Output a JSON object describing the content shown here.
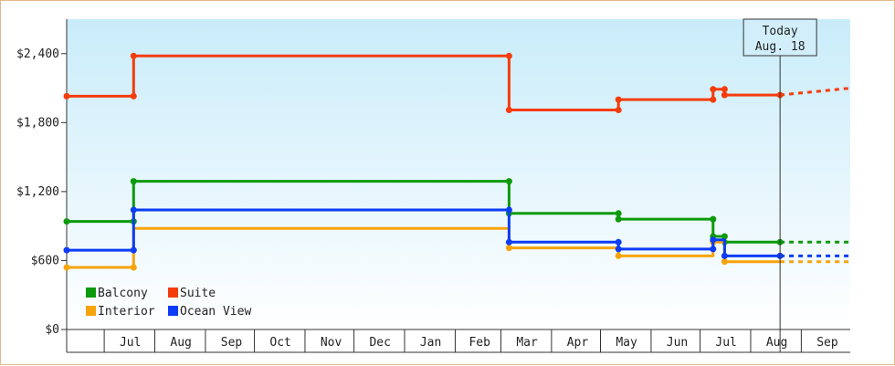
{
  "chart_data": {
    "type": "line",
    "title": "",
    "xlabel": "",
    "ylabel": "",
    "ylim": [
      0,
      2700
    ],
    "y_ticks": [
      0,
      600,
      1200,
      1800,
      2400
    ],
    "y_tick_labels": [
      "$0",
      "$600",
      "$1,200",
      "$1,800",
      "$2,400"
    ],
    "x_range": [
      "2024-06-07",
      "2025-09-30"
    ],
    "x_ticks": [
      {
        "label": "Jul",
        "date": "2024-07-16"
      },
      {
        "label": "Aug",
        "date": "2024-08-16"
      },
      {
        "label": "Sep",
        "date": "2024-09-16"
      },
      {
        "label": "Oct",
        "date": "2024-10-16"
      },
      {
        "label": "Nov",
        "date": "2024-11-16"
      },
      {
        "label": "Dec",
        "date": "2024-12-16"
      },
      {
        "label": "Jan",
        "date": "2025-01-16"
      },
      {
        "label": "Feb",
        "date": "2025-02-15"
      },
      {
        "label": "Mar",
        "date": "2025-03-16"
      },
      {
        "label": "Apr",
        "date": "2025-04-16"
      },
      {
        "label": "May",
        "date": "2025-05-16"
      },
      {
        "label": "Jun",
        "date": "2025-06-16"
      },
      {
        "label": "Jul",
        "date": "2025-07-16"
      },
      {
        "label": "Aug",
        "date": "2025-08-16"
      },
      {
        "label": "Sep",
        "date": "2025-09-16"
      }
    ],
    "x_dividers": [
      "2024-06-30",
      "2024-07-31",
      "2024-08-31",
      "2024-09-30",
      "2024-10-31",
      "2024-11-30",
      "2024-12-31",
      "2025-01-31",
      "2025-02-28",
      "2025-03-31",
      "2025-04-30",
      "2025-05-31",
      "2025-06-30",
      "2025-07-31",
      "2025-08-31"
    ],
    "today": {
      "line1": "Today",
      "line2": "Aug. 18",
      "date": "2025-08-18"
    },
    "grid": false,
    "legend_position": "bottom-left",
    "series": [
      {
        "name": "Balcony",
        "color": "#0c9a0c",
        "points": [
          [
            "2024-06-07",
            940
          ],
          [
            "2024-07-18",
            940
          ],
          [
            "2024-07-18",
            1290
          ],
          [
            "2025-03-05",
            1290
          ],
          [
            "2025-03-05",
            1010
          ],
          [
            "2025-05-11",
            1010
          ],
          [
            "2025-05-11",
            960
          ],
          [
            "2025-07-08",
            960
          ],
          [
            "2025-07-08",
            810
          ],
          [
            "2025-07-15",
            810
          ],
          [
            "2025-07-15",
            760
          ],
          [
            "2025-08-18",
            760
          ]
        ],
        "markers": [
          [
            "2024-06-07",
            940
          ],
          [
            "2024-07-18",
            940
          ],
          [
            "2024-07-18",
            1290
          ],
          [
            "2025-03-05",
            1290
          ],
          [
            "2025-03-05",
            1010
          ],
          [
            "2025-05-11",
            1010
          ],
          [
            "2025-05-11",
            960
          ],
          [
            "2025-07-08",
            960
          ],
          [
            "2025-07-08",
            810
          ],
          [
            "2025-07-15",
            810
          ],
          [
            "2025-07-15",
            760
          ],
          [
            "2025-08-18",
            760
          ]
        ],
        "projection": [
          [
            "2025-08-18",
            760
          ],
          [
            "2025-09-30",
            760
          ]
        ]
      },
      {
        "name": "Suite",
        "color": "#f53c0c",
        "points": [
          [
            "2024-06-07",
            2030
          ],
          [
            "2024-07-18",
            2030
          ],
          [
            "2024-07-18",
            2380
          ],
          [
            "2025-03-05",
            2380
          ],
          [
            "2025-03-05",
            1910
          ],
          [
            "2025-05-11",
            1910
          ],
          [
            "2025-05-11",
            2000
          ],
          [
            "2025-07-08",
            2000
          ],
          [
            "2025-07-08",
            2090
          ],
          [
            "2025-07-15",
            2090
          ],
          [
            "2025-07-15",
            2040
          ],
          [
            "2025-08-18",
            2040
          ]
        ],
        "markers": [
          [
            "2024-06-07",
            2030
          ],
          [
            "2024-07-18",
            2030
          ],
          [
            "2024-07-18",
            2380
          ],
          [
            "2025-03-05",
            2380
          ],
          [
            "2025-03-05",
            1910
          ],
          [
            "2025-05-11",
            1910
          ],
          [
            "2025-05-11",
            2000
          ],
          [
            "2025-07-08",
            2000
          ],
          [
            "2025-07-08",
            2090
          ],
          [
            "2025-07-15",
            2090
          ],
          [
            "2025-07-15",
            2040
          ],
          [
            "2025-08-18",
            2040
          ]
        ],
        "projection": [
          [
            "2025-08-18",
            2040
          ],
          [
            "2025-09-30",
            2100
          ]
        ]
      },
      {
        "name": "Interior",
        "color": "#f7a40c",
        "points": [
          [
            "2024-06-07",
            540
          ],
          [
            "2024-07-18",
            540
          ],
          [
            "2024-07-18",
            880
          ],
          [
            "2025-03-05",
            880
          ],
          [
            "2025-03-05",
            710
          ],
          [
            "2025-05-11",
            710
          ],
          [
            "2025-05-11",
            640
          ],
          [
            "2025-07-08",
            640
          ],
          [
            "2025-07-08",
            760
          ],
          [
            "2025-07-15",
            760
          ],
          [
            "2025-07-15",
            590
          ],
          [
            "2025-08-18",
            590
          ]
        ],
        "markers": [
          [
            "2024-06-07",
            540
          ],
          [
            "2024-07-18",
            540
          ],
          [
            "2025-03-05",
            710
          ],
          [
            "2025-05-11",
            640
          ],
          [
            "2025-07-08",
            760
          ],
          [
            "2025-07-15",
            590
          ]
        ],
        "projection": [
          [
            "2025-08-18",
            590
          ],
          [
            "2025-09-30",
            590
          ]
        ]
      },
      {
        "name": "Ocean View",
        "color": "#0c3cf5",
        "points": [
          [
            "2024-06-07",
            690
          ],
          [
            "2024-07-18",
            690
          ],
          [
            "2024-07-18",
            1040
          ],
          [
            "2025-03-05",
            1040
          ],
          [
            "2025-03-05",
            760
          ],
          [
            "2025-05-11",
            760
          ],
          [
            "2025-05-11",
            700
          ],
          [
            "2025-07-08",
            700
          ],
          [
            "2025-07-08",
            780
          ],
          [
            "2025-07-15",
            780
          ],
          [
            "2025-07-15",
            640
          ],
          [
            "2025-08-18",
            640
          ]
        ],
        "markers": [
          [
            "2024-06-07",
            690
          ],
          [
            "2024-07-18",
            690
          ],
          [
            "2024-07-18",
            1040
          ],
          [
            "2025-03-05",
            1040
          ],
          [
            "2025-03-05",
            760
          ],
          [
            "2025-05-11",
            760
          ],
          [
            "2025-05-11",
            700
          ],
          [
            "2025-07-08",
            700
          ],
          [
            "2025-07-08",
            780
          ],
          [
            "2025-07-15",
            640
          ],
          [
            "2025-08-18",
            640
          ]
        ],
        "projection": [
          [
            "2025-08-18",
            640
          ],
          [
            "2025-09-30",
            640
          ]
        ]
      }
    ]
  }
}
